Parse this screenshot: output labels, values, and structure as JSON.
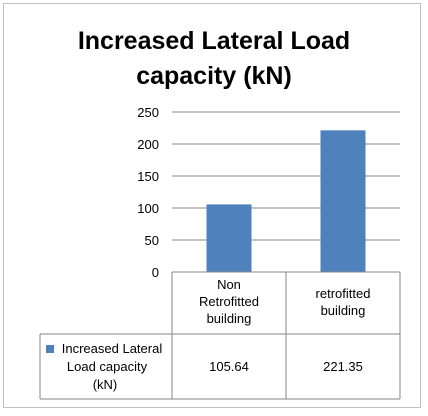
{
  "chart_data": {
    "type": "bar",
    "title_lines": [
      "Increased  Lateral Load",
      "capacity (kN)"
    ],
    "categories": [
      [
        "Non",
        "Retrofitted",
        "building"
      ],
      [
        "retrofitted",
        "building"
      ]
    ],
    "series": [
      {
        "name_lines": [
          "Increased  Lateral",
          "Load capacity",
          "(kN)"
        ],
        "values": [
          105.64,
          221.35
        ],
        "value_labels": [
          "105.64",
          "221.35"
        ],
        "color": "#4f81bd"
      }
    ],
    "ylim": [
      0,
      250
    ],
    "y_ticks": [
      "0",
      "50",
      "100",
      "150",
      "200",
      "250"
    ],
    "grid": true,
    "legend": "data-table"
  }
}
